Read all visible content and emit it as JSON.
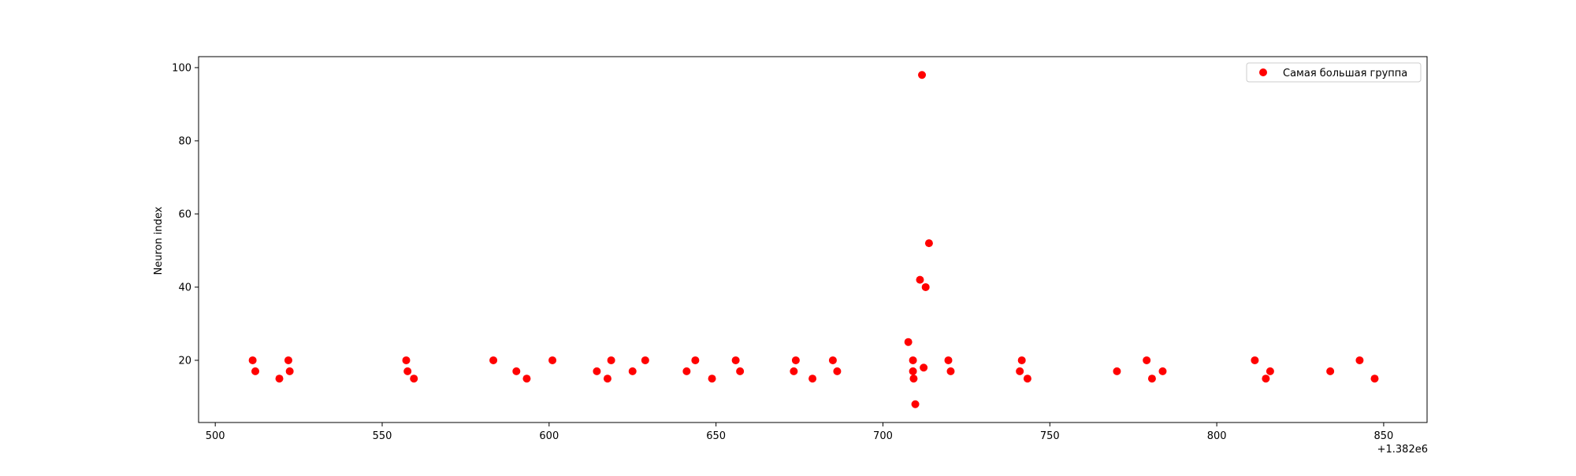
{
  "chart_data": {
    "type": "scatter",
    "title": "",
    "xlabel": "",
    "ylabel": "Neuron index",
    "x_offset_label": "+1.382e6",
    "xlim": [
      1382495,
      1382863
    ],
    "ylim": [
      3,
      103
    ],
    "x_ticks": [
      {
        "value": 1382500,
        "label": "500"
      },
      {
        "value": 1382550,
        "label": "550"
      },
      {
        "value": 1382600,
        "label": "600"
      },
      {
        "value": 1382650,
        "label": "650"
      },
      {
        "value": 1382700,
        "label": "700"
      },
      {
        "value": 1382750,
        "label": "750"
      },
      {
        "value": 1382800,
        "label": "800"
      },
      {
        "value": 1382850,
        "label": "850"
      }
    ],
    "y_ticks": [
      {
        "value": 20,
        "label": "20"
      },
      {
        "value": 40,
        "label": "40"
      },
      {
        "value": 60,
        "label": "60"
      },
      {
        "value": 80,
        "label": "80"
      },
      {
        "value": 100,
        "label": "100"
      }
    ],
    "grid": false,
    "legend_position": "top-right",
    "series": [
      {
        "name": "Самая большая группа",
        "color": "#ff0000",
        "marker": "circle",
        "points": [
          {
            "x": 1382511.2,
            "y": 20
          },
          {
            "x": 1382512.0,
            "y": 17
          },
          {
            "x": 1382519.2,
            "y": 15
          },
          {
            "x": 1382521.9,
            "y": 20
          },
          {
            "x": 1382522.3,
            "y": 17
          },
          {
            "x": 1382557.2,
            "y": 20
          },
          {
            "x": 1382557.6,
            "y": 17
          },
          {
            "x": 1382559.5,
            "y": 15
          },
          {
            "x": 1382583.3,
            "y": 20
          },
          {
            "x": 1382590.2,
            "y": 17
          },
          {
            "x": 1382593.3,
            "y": 15
          },
          {
            "x": 1382601.0,
            "y": 20
          },
          {
            "x": 1382614.3,
            "y": 17
          },
          {
            "x": 1382617.5,
            "y": 15
          },
          {
            "x": 1382618.6,
            "y": 20
          },
          {
            "x": 1382625.0,
            "y": 17
          },
          {
            "x": 1382628.8,
            "y": 20
          },
          {
            "x": 1382641.2,
            "y": 17
          },
          {
            "x": 1382643.8,
            "y": 20
          },
          {
            "x": 1382648.8,
            "y": 15
          },
          {
            "x": 1382655.9,
            "y": 20
          },
          {
            "x": 1382657.2,
            "y": 17
          },
          {
            "x": 1382673.3,
            "y": 17
          },
          {
            "x": 1382673.9,
            "y": 20
          },
          {
            "x": 1382678.9,
            "y": 15
          },
          {
            "x": 1382685.0,
            "y": 20
          },
          {
            "x": 1382686.3,
            "y": 17
          },
          {
            "x": 1382707.6,
            "y": 25
          },
          {
            "x": 1382709.0,
            "y": 20
          },
          {
            "x": 1382709.0,
            "y": 17
          },
          {
            "x": 1382709.2,
            "y": 15
          },
          {
            "x": 1382709.7,
            "y": 8
          },
          {
            "x": 1382711.1,
            "y": 42
          },
          {
            "x": 1382711.7,
            "y": 98
          },
          {
            "x": 1382712.2,
            "y": 18
          },
          {
            "x": 1382712.8,
            "y": 40
          },
          {
            "x": 1382713.8,
            "y": 52
          },
          {
            "x": 1382719.6,
            "y": 20
          },
          {
            "x": 1382720.3,
            "y": 17
          },
          {
            "x": 1382741.0,
            "y": 17
          },
          {
            "x": 1382741.6,
            "y": 20
          },
          {
            "x": 1382743.3,
            "y": 15
          },
          {
            "x": 1382770.1,
            "y": 17
          },
          {
            "x": 1382779.0,
            "y": 20
          },
          {
            "x": 1382780.6,
            "y": 15
          },
          {
            "x": 1382783.8,
            "y": 17
          },
          {
            "x": 1382811.4,
            "y": 20
          },
          {
            "x": 1382814.7,
            "y": 15
          },
          {
            "x": 1382816.0,
            "y": 17
          },
          {
            "x": 1382834.0,
            "y": 17
          },
          {
            "x": 1382842.8,
            "y": 20
          },
          {
            "x": 1382847.3,
            "y": 15
          }
        ]
      }
    ]
  }
}
